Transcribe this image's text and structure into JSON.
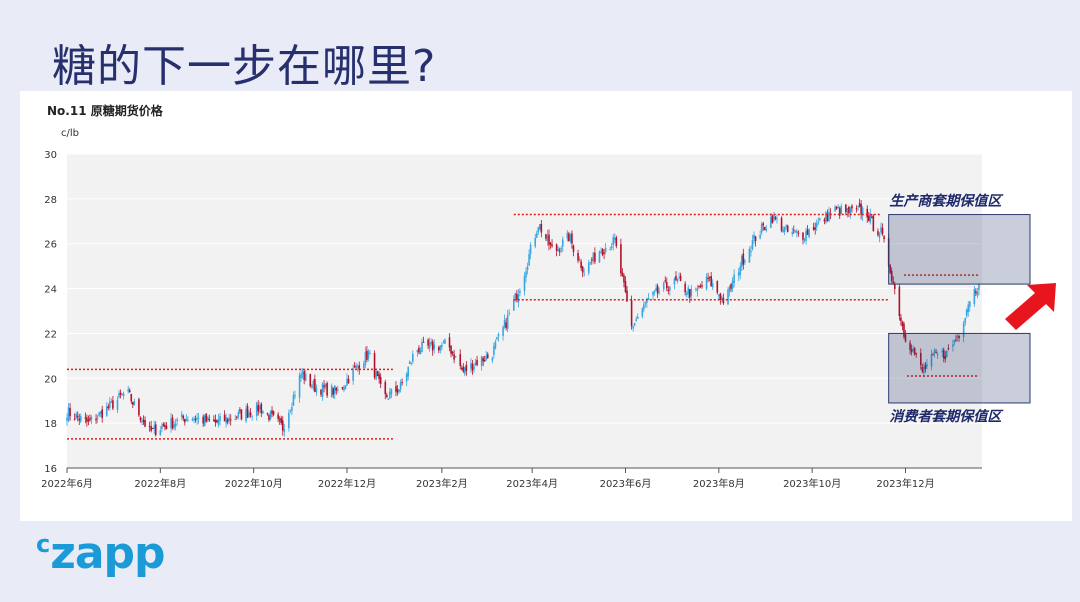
{
  "slide": {
    "title": "糖的下一步在哪里?",
    "logo_prefix": "c",
    "logo_main": "zapp"
  },
  "colors": {
    "up": "#3aa6e0",
    "down": "#b2102a",
    "reference_line": "#e31c1c",
    "zone_fill": "#2b3a6e",
    "zone_label": "#1e2a6a",
    "arrow": "#e8141e",
    "plot_bg": "#f2f2f2"
  },
  "chart_data": {
    "type": "candlestick",
    "title": "No.11 原糖期货价格",
    "ylabel": "c/lb",
    "ylim": [
      16,
      30
    ],
    "yticks": [
      16,
      18,
      20,
      22,
      24,
      26,
      28,
      30
    ],
    "x_range": [
      "2022-06-01",
      "2024-01-20"
    ],
    "xticks": [
      {
        "date": "2022-06-01",
        "label": "2022年6月"
      },
      {
        "date": "2022-08-01",
        "label": "2022年8月"
      },
      {
        "date": "2022-10-01",
        "label": "2022年10月"
      },
      {
        "date": "2022-12-01",
        "label": "2022年12月"
      },
      {
        "date": "2023-02-01",
        "label": "2023年2月"
      },
      {
        "date": "2023-04-01",
        "label": "2023年4月"
      },
      {
        "date": "2023-06-01",
        "label": "2023年6月"
      },
      {
        "date": "2023-08-01",
        "label": "2023年8月"
      },
      {
        "date": "2023-10-01",
        "label": "2023年10月"
      },
      {
        "date": "2023-12-01",
        "label": "2023年12月"
      }
    ],
    "close_path": [
      [
        "2022-06-01",
        18.5
      ],
      [
        "2022-06-15",
        18.0
      ],
      [
        "2022-06-30",
        18.8
      ],
      [
        "2022-07-10",
        19.4
      ],
      [
        "2022-07-25",
        17.6
      ],
      [
        "2022-08-05",
        17.9
      ],
      [
        "2022-08-20",
        18.3
      ],
      [
        "2022-09-05",
        18.0
      ],
      [
        "2022-09-20",
        18.3
      ],
      [
        "2022-10-05",
        18.7
      ],
      [
        "2022-10-20",
        17.8
      ],
      [
        "2022-11-01",
        20.2
      ],
      [
        "2022-11-10",
        19.6
      ],
      [
        "2022-11-25",
        19.4
      ],
      [
        "2022-12-05",
        20.3
      ],
      [
        "2022-12-15",
        21.1
      ],
      [
        "2022-12-25",
        19.1
      ],
      [
        "2023-01-05",
        19.6
      ],
      [
        "2023-01-15",
        21.3
      ],
      [
        "2023-01-25",
        21.4
      ],
      [
        "2023-02-05",
        21.5
      ],
      [
        "2023-02-15",
        20.3
      ],
      [
        "2023-02-25",
        20.8
      ],
      [
        "2023-03-05",
        21.0
      ],
      [
        "2023-03-15",
        22.5
      ],
      [
        "2023-03-25",
        24.3
      ],
      [
        "2023-04-05",
        26.9
      ],
      [
        "2023-04-15",
        25.6
      ],
      [
        "2023-04-25",
        26.3
      ],
      [
        "2023-05-05",
        24.8
      ],
      [
        "2023-05-15",
        25.7
      ],
      [
        "2023-05-25",
        26.1
      ],
      [
        "2023-06-05",
        22.3
      ],
      [
        "2023-06-15",
        23.4
      ],
      [
        "2023-06-25",
        24.0
      ],
      [
        "2023-07-05",
        24.3
      ],
      [
        "2023-07-15",
        23.7
      ],
      [
        "2023-07-25",
        24.4
      ],
      [
        "2023-08-05",
        23.4
      ],
      [
        "2023-08-15",
        25.1
      ],
      [
        "2023-08-25",
        26.3
      ],
      [
        "2023-09-05",
        27.2
      ],
      [
        "2023-09-15",
        26.5
      ],
      [
        "2023-09-25",
        26.4
      ],
      [
        "2023-10-05",
        26.9
      ],
      [
        "2023-10-15",
        27.5
      ],
      [
        "2023-10-25",
        27.4
      ],
      [
        "2023-11-05",
        27.5
      ],
      [
        "2023-11-10",
        26.8
      ],
      [
        "2023-11-15",
        26.5
      ],
      [
        "2023-11-22",
        24.6
      ],
      [
        "2023-11-30",
        22.0
      ],
      [
        "2023-12-05",
        21.4
      ],
      [
        "2023-12-12",
        20.3
      ],
      [
        "2023-12-20",
        21.0
      ],
      [
        "2023-12-28",
        21.1
      ],
      [
        "2024-01-05",
        22.0
      ],
      [
        "2024-01-12",
        23.6
      ],
      [
        "2024-01-18",
        24.2
      ]
    ],
    "reference_lines": [
      {
        "y": 20.4,
        "from": "2022-06-01",
        "to": "2022-12-31"
      },
      {
        "y": 17.3,
        "from": "2022-06-01",
        "to": "2022-12-31"
      },
      {
        "y": 27.3,
        "from": "2023-03-20",
        "to": "2023-11-15"
      },
      {
        "y": 23.5,
        "from": "2023-03-20",
        "to": "2023-11-20"
      },
      {
        "y": 24.6,
        "from": "2023-11-30",
        "to": "2024-01-18"
      },
      {
        "y": 20.1,
        "from": "2023-12-02",
        "to": "2024-01-18"
      }
    ],
    "zones": [
      {
        "label": "生产商套期保值区",
        "y_top": 27.3,
        "y_bottom": 24.2,
        "from": "2023-11-20",
        "label_pos": "above"
      },
      {
        "label": "消费者套期保值区",
        "y_top": 22.0,
        "y_bottom": 18.9,
        "from": "2023-11-20",
        "label_pos": "below"
      }
    ],
    "annotation_arrow": {
      "direction": "up-right",
      "color": "#e8141e"
    }
  }
}
